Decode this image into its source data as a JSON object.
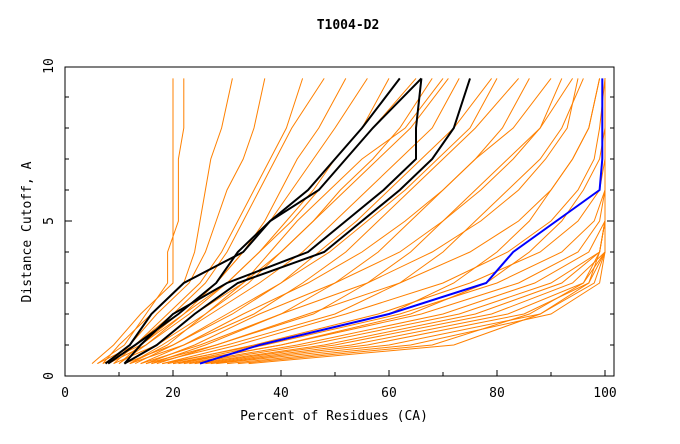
{
  "chart_data": {
    "type": "line",
    "title": "T1004-D2",
    "xlabel": "Percent of Residues (CA)",
    "ylabel": "Distance Cutoff, A",
    "xlim": [
      0,
      100
    ],
    "ylim": [
      0,
      10
    ],
    "xticks": [
      "0",
      "20",
      "40",
      "60",
      "80",
      "100"
    ],
    "yticks": [
      "0",
      "5",
      "10"
    ],
    "grid": false,
    "legend": "none",
    "y": [
      0.4,
      1,
      2,
      3,
      4,
      5,
      6,
      7,
      8,
      9.6
    ],
    "colors": {
      "other": "#ff8000",
      "highlight": "#000000",
      "best": "#0000ff"
    },
    "series_other": [
      [
        5,
        9,
        14,
        20,
        20,
        20,
        20,
        20,
        20,
        20
      ],
      [
        6,
        11,
        15,
        19,
        19,
        21,
        21,
        21,
        22,
        22
      ],
      [
        7,
        10,
        16,
        22,
        24,
        25,
        26,
        27,
        29,
        31
      ],
      [
        8,
        12,
        17,
        23,
        26,
        28,
        30,
        33,
        35,
        37
      ],
      [
        9,
        13,
        19,
        25,
        29,
        32,
        35,
        38,
        41,
        44
      ],
      [
        10,
        14,
        21,
        28,
        33,
        37,
        40,
        43,
        47,
        52
      ],
      [
        10,
        15,
        22,
        30,
        36,
        41,
        46,
        50,
        55,
        60
      ],
      [
        11,
        17,
        24,
        33,
        40,
        46,
        51,
        57,
        62,
        68
      ],
      [
        12,
        18,
        27,
        36,
        44,
        50,
        56,
        62,
        68,
        73
      ],
      [
        13,
        20,
        30,
        40,
        49,
        56,
        63,
        69,
        75,
        80
      ],
      [
        14,
        22,
        33,
        45,
        55,
        63,
        70,
        76,
        81,
        86
      ],
      [
        15,
        24,
        36,
        50,
        62,
        70,
        77,
        83,
        88,
        92
      ],
      [
        16,
        26,
        40,
        56,
        68,
        77,
        84,
        89,
        93,
        95
      ],
      [
        17,
        28,
        45,
        62,
        75,
        84,
        90,
        94,
        97,
        99
      ],
      [
        18,
        32,
        52,
        70,
        82,
        90,
        95,
        98,
        99,
        100
      ],
      [
        19,
        35,
        58,
        75,
        88,
        95,
        99,
        100,
        100,
        100
      ],
      [
        20,
        37,
        62,
        80,
        92,
        98,
        100,
        100,
        100,
        100
      ],
      [
        21,
        40,
        66,
        84,
        95,
        99,
        100,
        100,
        100,
        100
      ],
      [
        22,
        43,
        70,
        87,
        97,
        100,
        100,
        100,
        100,
        100
      ],
      [
        23,
        45,
        73,
        90,
        99,
        100,
        100,
        100,
        100,
        100
      ],
      [
        24,
        48,
        76,
        92,
        99,
        100,
        100,
        100,
        100,
        100
      ],
      [
        25,
        50,
        79,
        94,
        100,
        100,
        100,
        100,
        100,
        100
      ],
      [
        26,
        53,
        82,
        96,
        100,
        100,
        100,
        100,
        100,
        100
      ],
      [
        27,
        56,
        85,
        97,
        100,
        100,
        100,
        100,
        100,
        100
      ],
      [
        28,
        60,
        88,
        98,
        100,
        100,
        100,
        100,
        100,
        100
      ],
      [
        30,
        64,
        90,
        99,
        100,
        100,
        100,
        100,
        100,
        100
      ],
      [
        32,
        68,
        86,
        96,
        99,
        100,
        100,
        100,
        100,
        100
      ],
      [
        34,
        72,
        88,
        97,
        99,
        100,
        100,
        100,
        100,
        100
      ],
      [
        20,
        40,
        64,
        78,
        86,
        92,
        96,
        99,
        100,
        100
      ],
      [
        18,
        36,
        60,
        72,
        80,
        86,
        90,
        94,
        97,
        99
      ],
      [
        16,
        30,
        50,
        62,
        70,
        76,
        82,
        88,
        92,
        96
      ],
      [
        15,
        28,
        46,
        56,
        64,
        70,
        76,
        82,
        88,
        94
      ],
      [
        14,
        25,
        40,
        50,
        58,
        64,
        70,
        76,
        83,
        90
      ],
      [
        12,
        22,
        35,
        44,
        52,
        58,
        64,
        70,
        76,
        84
      ],
      [
        11,
        20,
        31,
        40,
        47,
        54,
        60,
        66,
        72,
        79
      ],
      [
        9,
        17,
        26,
        34,
        40,
        46,
        52,
        58,
        64,
        71
      ],
      [
        8,
        15,
        23,
        30,
        36,
        42,
        47,
        52,
        57,
        65
      ],
      [
        7,
        14,
        22,
        28,
        33,
        38,
        42,
        46,
        50,
        56
      ],
      [
        6,
        13,
        20,
        26,
        30,
        33,
        36,
        39,
        42,
        48
      ],
      [
        12,
        19,
        26,
        33,
        38,
        43,
        49,
        55,
        63,
        70
      ]
    ],
    "series_highlight": [
      [
        7.5,
        12,
        16,
        22,
        33,
        38,
        45,
        50,
        55,
        62
      ],
      [
        8,
        13,
        21,
        28,
        32,
        38,
        47,
        52,
        57,
        66
      ],
      [
        11,
        14,
        20,
        30,
        45,
        52,
        59,
        65,
        65,
        66
      ],
      [
        11,
        17,
        24,
        32,
        48,
        55,
        62,
        68,
        72,
        75
      ]
    ],
    "series_best": [
      25,
      36,
      60,
      78,
      83,
      91,
      99,
      99.5,
      99.5,
      99.5
    ]
  }
}
